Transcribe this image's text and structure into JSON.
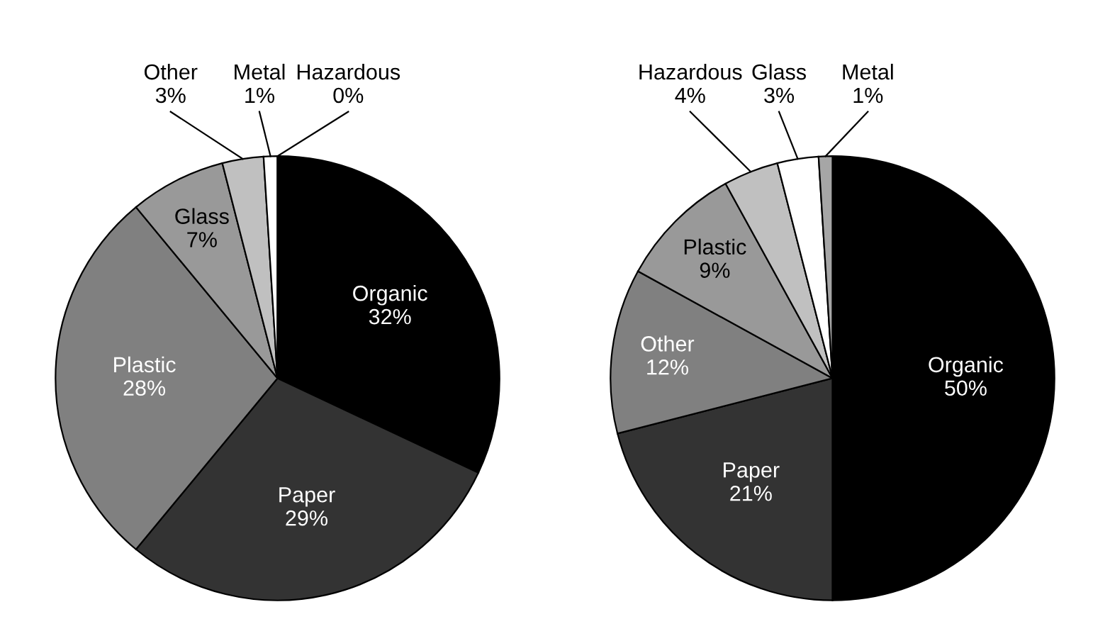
{
  "chart_data": [
    {
      "type": "pie",
      "categories": [
        "Organic",
        "Paper",
        "Plastic",
        "Glass",
        "Other",
        "Metal",
        "Hazardous"
      ],
      "values": [
        32,
        29,
        28,
        7,
        3,
        1,
        0
      ],
      "value_labels": [
        "32%",
        "29%",
        "28%",
        "7%",
        "3%",
        "1%",
        "0%"
      ],
      "colors": [
        "#000000",
        "#333333",
        "#808080",
        "#999999",
        "#c0c0c0",
        "#ffffff",
        "#a6a6a6"
      ]
    },
    {
      "type": "pie",
      "categories": [
        "Organic",
        "Paper",
        "Other",
        "Plastic",
        "Hazardous",
        "Glass",
        "Metal"
      ],
      "values": [
        50,
        21,
        12,
        9,
        4,
        3,
        1
      ],
      "value_labels": [
        "50%",
        "21%",
        "12%",
        "9%",
        "4%",
        "3%",
        "1%"
      ],
      "colors": [
        "#000000",
        "#333333",
        "#808080",
        "#999999",
        "#c0c0c0",
        "#ffffff",
        "#a6a6a6"
      ]
    }
  ]
}
